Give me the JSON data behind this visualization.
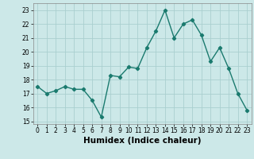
{
  "x": [
    0,
    1,
    2,
    3,
    4,
    5,
    6,
    7,
    8,
    9,
    10,
    11,
    12,
    13,
    14,
    15,
    16,
    17,
    18,
    19,
    20,
    21,
    22,
    23
  ],
  "y": [
    17.5,
    17.0,
    17.2,
    17.5,
    17.3,
    17.3,
    16.5,
    15.3,
    18.3,
    18.2,
    18.9,
    18.8,
    20.3,
    21.5,
    23.0,
    21.0,
    22.0,
    22.3,
    21.2,
    19.3,
    20.3,
    18.8,
    17.0,
    15.8
  ],
  "xlabel": "Humidex (Indice chaleur)",
  "ylabel": "",
  "xlim": [
    -0.5,
    23.5
  ],
  "ylim": [
    14.8,
    23.5
  ],
  "yticks": [
    15,
    16,
    17,
    18,
    19,
    20,
    21,
    22,
    23
  ],
  "xticks": [
    0,
    1,
    2,
    3,
    4,
    5,
    6,
    7,
    8,
    9,
    10,
    11,
    12,
    13,
    14,
    15,
    16,
    17,
    18,
    19,
    20,
    21,
    22,
    23
  ],
  "line_color": "#1a7a6e",
  "marker": "D",
  "marker_size": 2.2,
  "bg_color": "#cce8e8",
  "grid_color": "#aacfcf",
  "tick_fontsize": 5.5,
  "xlabel_fontsize": 7.5,
  "line_width": 1.0
}
